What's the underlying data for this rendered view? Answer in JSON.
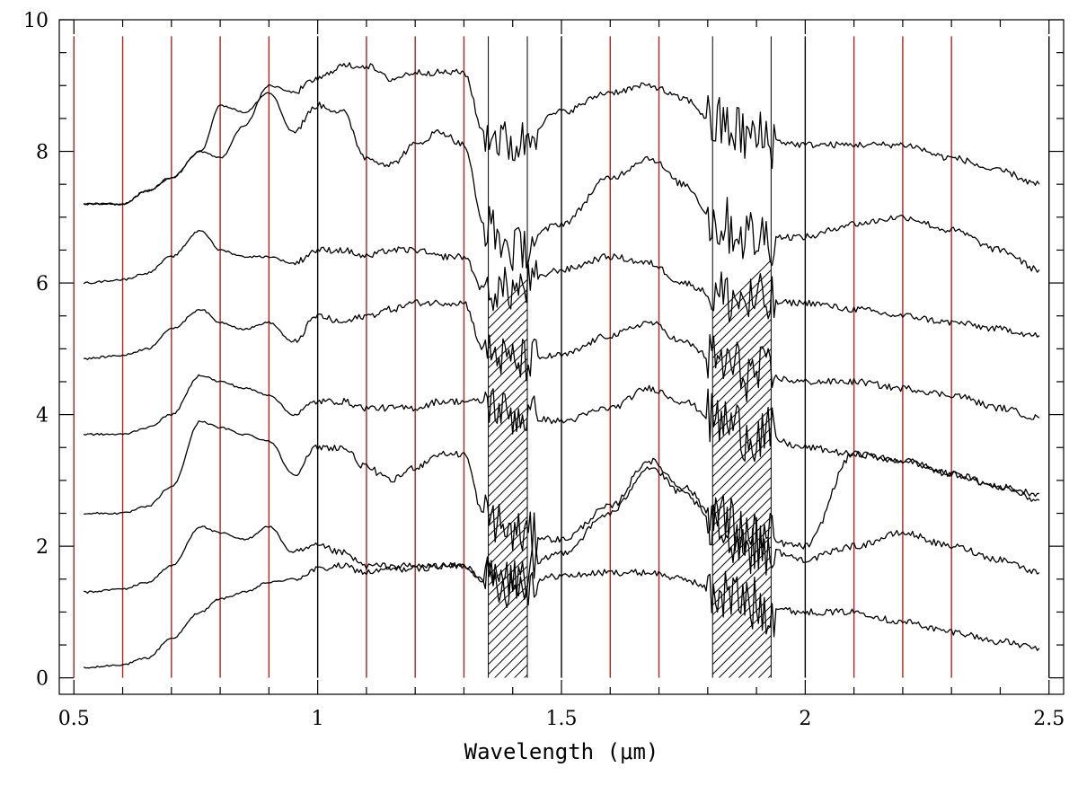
{
  "chart_data": {
    "type": "line",
    "title": "",
    "xlabel": "Wavelength (μm)",
    "ylabel": "",
    "xlim": [
      0.47,
      2.53
    ],
    "ylim": [
      -0.25,
      10.0
    ],
    "x_ticks": [
      0.5,
      1,
      1.5,
      2,
      2.5
    ],
    "x_tick_labels": [
      "0.5",
      "1",
      "1.5",
      "2",
      "2.5"
    ],
    "y_ticks": [
      0,
      2,
      4,
      6,
      8,
      10
    ],
    "y_tick_labels": [
      "0",
      "2",
      "4",
      "6",
      "8",
      "10"
    ],
    "x_minor_step": 0.1,
    "y_minor_step": 0.5,
    "grid": false,
    "legend": "none",
    "colors": {
      "spectrum": "#000000",
      "reference_line_red": "#b22222",
      "reference_line_black": "#000000",
      "hatch": "#000000"
    },
    "reference_lines": [
      {
        "x": 0.5,
        "color": "red"
      },
      {
        "x": 0.6,
        "color": "red"
      },
      {
        "x": 0.7,
        "color": "red"
      },
      {
        "x": 0.8,
        "color": "red"
      },
      {
        "x": 0.9,
        "color": "red"
      },
      {
        "x": 1.0,
        "color": "black"
      },
      {
        "x": 1.1,
        "color": "red"
      },
      {
        "x": 1.2,
        "color": "red"
      },
      {
        "x": 1.3,
        "color": "red"
      },
      {
        "x": 1.5,
        "color": "black"
      },
      {
        "x": 1.6,
        "color": "red"
      },
      {
        "x": 1.7,
        "color": "red"
      },
      {
        "x": 2.0,
        "color": "black"
      },
      {
        "x": 2.1,
        "color": "red"
      },
      {
        "x": 2.2,
        "color": "red"
      },
      {
        "x": 2.3,
        "color": "red"
      },
      {
        "x": 2.5,
        "color": "black"
      }
    ],
    "shaded_regions": [
      {
        "x_start": 1.35,
        "x_end": 1.43,
        "style": "hatched"
      },
      {
        "x_start": 1.81,
        "x_end": 1.93,
        "style": "hatched"
      }
    ],
    "series": [
      {
        "x": [
          0.52,
          0.6,
          0.65,
          0.7,
          0.76,
          0.8,
          0.85,
          0.9,
          0.95,
          1.0,
          1.05,
          1.1,
          1.15,
          1.2,
          1.25,
          1.3,
          1.34,
          1.4,
          1.5,
          1.6,
          1.68,
          1.75,
          1.82,
          1.9,
          2.0,
          2.1,
          2.2,
          2.3,
          2.4,
          2.48
        ],
        "values": [
          0.15,
          0.2,
          0.3,
          0.6,
          1.0,
          1.2,
          1.3,
          1.45,
          1.5,
          1.65,
          1.7,
          1.6,
          1.65,
          1.65,
          1.7,
          1.7,
          1.5,
          1.4,
          1.55,
          1.6,
          1.6,
          1.5,
          1.3,
          1.1,
          1.0,
          1.0,
          0.85,
          0.7,
          0.55,
          0.45
        ]
      },
      {
        "x": [
          0.52,
          0.6,
          0.65,
          0.7,
          0.76,
          0.8,
          0.85,
          0.9,
          0.95,
          1.0,
          1.05,
          1.1,
          1.15,
          1.2,
          1.25,
          1.3,
          1.34,
          1.4,
          1.5,
          1.6,
          1.68,
          1.75,
          1.82,
          1.9,
          2.0,
          2.1,
          2.2,
          2.3,
          2.4,
          2.48
        ],
        "values": [
          1.3,
          1.35,
          1.45,
          1.7,
          2.3,
          2.2,
          2.1,
          2.3,
          1.9,
          2.0,
          1.9,
          1.7,
          1.7,
          1.7,
          1.7,
          1.7,
          1.5,
          1.5,
          1.9,
          2.5,
          3.2,
          2.8,
          2.3,
          2.0,
          1.8,
          2.0,
          2.2,
          2.0,
          1.8,
          1.6
        ]
      },
      {
        "x": [
          0.52,
          0.6,
          0.65,
          0.7,
          0.76,
          0.8,
          0.85,
          0.9,
          0.95,
          1.0,
          1.05,
          1.1,
          1.15,
          1.2,
          1.25,
          1.3,
          1.34,
          1.4,
          1.5,
          1.6,
          1.68,
          1.75,
          1.82,
          1.9,
          2.0,
          2.1,
          2.2,
          2.3,
          2.4,
          2.48
        ],
        "values": [
          2.5,
          2.5,
          2.6,
          2.9,
          3.9,
          3.8,
          3.7,
          3.6,
          3.1,
          3.5,
          3.5,
          3.2,
          3.0,
          3.2,
          3.4,
          3.4,
          2.5,
          2.2,
          2.1,
          2.6,
          3.3,
          2.9,
          2.4,
          2.1,
          2.0,
          3.4,
          3.3,
          3.1,
          2.9,
          2.7
        ]
      },
      {
        "x": [
          0.52,
          0.6,
          0.65,
          0.7,
          0.76,
          0.8,
          0.85,
          0.9,
          0.95,
          1.0,
          1.05,
          1.1,
          1.15,
          1.2,
          1.25,
          1.3,
          1.34,
          1.4,
          1.5,
          1.6,
          1.68,
          1.75,
          1.82,
          1.9,
          2.0,
          2.1,
          2.2,
          2.3,
          2.4,
          2.48
        ],
        "values": [
          3.7,
          3.7,
          3.8,
          4.0,
          4.6,
          4.5,
          4.4,
          4.3,
          4.0,
          4.2,
          4.2,
          4.1,
          4.1,
          4.1,
          4.2,
          4.2,
          4.2,
          4.0,
          3.9,
          4.1,
          4.4,
          4.2,
          3.9,
          3.7,
          3.5,
          3.4,
          3.3,
          3.1,
          2.9,
          2.8
        ]
      },
      {
        "x": [
          0.52,
          0.6,
          0.65,
          0.7,
          0.76,
          0.8,
          0.85,
          0.9,
          0.95,
          1.0,
          1.05,
          1.1,
          1.15,
          1.2,
          1.25,
          1.3,
          1.34,
          1.4,
          1.5,
          1.6,
          1.68,
          1.75,
          1.82,
          1.9,
          2.0,
          2.1,
          2.2,
          2.3,
          2.4,
          2.48
        ],
        "values": [
          4.85,
          4.9,
          5.0,
          5.3,
          5.6,
          5.4,
          5.3,
          5.4,
          5.1,
          5.5,
          5.4,
          5.5,
          5.6,
          5.7,
          5.7,
          5.7,
          5.0,
          4.8,
          4.9,
          5.2,
          5.4,
          5.1,
          4.8,
          4.6,
          4.5,
          4.5,
          4.4,
          4.3,
          4.1,
          3.95
        ]
      },
      {
        "x": [
          0.52,
          0.6,
          0.65,
          0.7,
          0.76,
          0.8,
          0.85,
          0.9,
          0.95,
          1.0,
          1.05,
          1.1,
          1.15,
          1.2,
          1.25,
          1.3,
          1.34,
          1.4,
          1.5,
          1.6,
          1.68,
          1.75,
          1.82,
          1.9,
          2.0,
          2.1,
          2.2,
          2.3,
          2.4,
          2.48
        ],
        "values": [
          6.0,
          6.05,
          6.15,
          6.4,
          6.8,
          6.5,
          6.4,
          6.4,
          6.3,
          6.5,
          6.5,
          6.4,
          6.5,
          6.5,
          6.4,
          6.4,
          5.9,
          5.9,
          6.2,
          6.4,
          6.3,
          6.0,
          5.8,
          5.7,
          5.7,
          5.6,
          5.5,
          5.4,
          5.3,
          5.2
        ]
      },
      {
        "x": [
          0.52,
          0.6,
          0.65,
          0.7,
          0.76,
          0.8,
          0.85,
          0.9,
          0.95,
          1.0,
          1.05,
          1.1,
          1.15,
          1.2,
          1.25,
          1.3,
          1.34,
          1.4,
          1.5,
          1.6,
          1.68,
          1.75,
          1.82,
          1.9,
          2.0,
          2.1,
          2.2,
          2.3,
          2.4,
          2.48
        ],
        "values": [
          7.2,
          7.2,
          7.4,
          7.6,
          8.0,
          8.7,
          8.6,
          8.9,
          8.3,
          8.7,
          8.6,
          7.9,
          7.8,
          8.1,
          8.3,
          8.1,
          6.9,
          6.5,
          6.9,
          7.6,
          7.9,
          7.5,
          6.9,
          6.7,
          6.7,
          6.9,
          7.0,
          6.8,
          6.5,
          6.2
        ]
      },
      {
        "x": [
          0.52,
          0.6,
          0.65,
          0.7,
          0.76,
          0.8,
          0.85,
          0.9,
          0.95,
          1.0,
          1.05,
          1.1,
          1.15,
          1.2,
          1.25,
          1.3,
          1.34,
          1.4,
          1.5,
          1.6,
          1.68,
          1.75,
          1.82,
          1.9,
          2.0,
          2.1,
          2.2,
          2.3,
          2.4,
          2.48
        ],
        "values": [
          7.2,
          7.2,
          7.4,
          7.6,
          8.0,
          7.9,
          8.4,
          9.0,
          8.9,
          9.1,
          9.3,
          9.3,
          9.1,
          9.2,
          9.2,
          9.2,
          8.3,
          8.1,
          8.6,
          8.9,
          9.0,
          8.8,
          8.4,
          8.2,
          8.1,
          8.1,
          8.1,
          7.9,
          7.7,
          7.5
        ]
      }
    ]
  }
}
